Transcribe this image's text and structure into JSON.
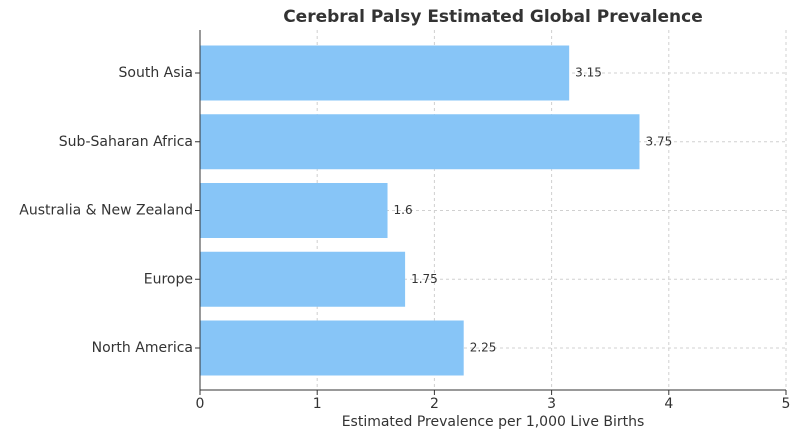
{
  "chart_data": {
    "type": "bar",
    "orientation": "horizontal",
    "title": "Cerebral Palsy Estimated Global Prevalence",
    "x_label": "Estimated Prevalence per 1,000 Live Births",
    "categories": [
      "South Asia",
      "Sub-Saharan Africa",
      "Australia & New Zealand",
      "Europe",
      "North America"
    ],
    "values": [
      3.15,
      3.75,
      1.6,
      1.75,
      2.25
    ],
    "color": "#87c5f7",
    "xlim": [
      0,
      5
    ],
    "xticks": [
      0,
      1,
      2,
      3,
      4,
      5
    ],
    "grid": true
  }
}
